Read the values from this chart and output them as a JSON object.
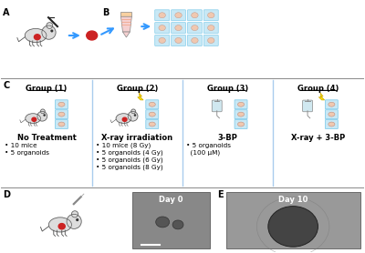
{
  "bg_color": "#ffffff",
  "panel_A_label": "A",
  "panel_B_label": "B",
  "panel_C_label": "C",
  "panel_D_label": "D",
  "panel_E_label": "E",
  "group_labels": [
    "Group (1)",
    "Group (2)",
    "Group (3)",
    "Group (4)"
  ],
  "group_titles": [
    "No Treatment",
    "X-ray irradiation",
    "3-BP",
    "X-ray + 3-BP"
  ],
  "group1_bullets": [
    "• 10 mice",
    "• 5 organoids"
  ],
  "group2_bullets": [
    "• 10 mice (8 Gy)",
    "• 5 organoids (4 Gy)",
    "• 5 organoids (6 Gy)",
    "• 5 organoids (8 Gy)"
  ],
  "group3_bullets": [
    "• 5 organoids",
    "  (100 μM)"
  ],
  "group4_bullets": [],
  "day0_label": "Day 0",
  "day10_label": "Day 10",
  "separator_color": "#888888",
  "well_color": "#c8e8f5",
  "well_border": "#87ceeb",
  "arrow_color": "#3399ff",
  "label_font_size": 6.5,
  "group_title_font_size": 6.0,
  "bullet_font_size": 5.2
}
